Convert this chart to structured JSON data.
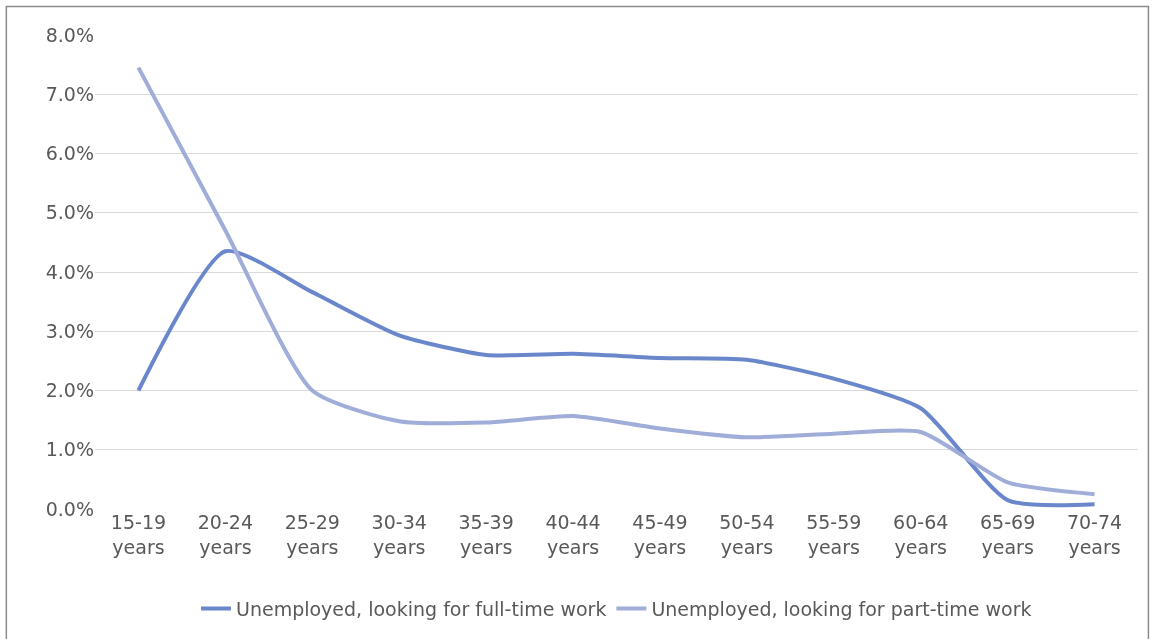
{
  "chart_data": {
    "type": "line",
    "categories": [
      "15-19 years",
      "20-24 years",
      "25-29 years",
      "30-34 years",
      "35-39 years",
      "40-44 years",
      "45-49 years",
      "50-54 years",
      "55-59 years",
      "60-64 years",
      "65-69 years",
      "70-74 years"
    ],
    "series": [
      {
        "name": "Unemployed, looking for full-time work",
        "color": "#6b87cb",
        "values": [
          2.0,
          4.35,
          3.66,
          2.93,
          2.6,
          2.62,
          2.55,
          2.52,
          2.2,
          1.7,
          0.15,
          0.08
        ]
      },
      {
        "name": "Unemployed, looking for part-time work",
        "color": "#9fadd8",
        "values": [
          7.45,
          4.7,
          2.0,
          1.48,
          1.46,
          1.57,
          1.36,
          1.21,
          1.27,
          1.3,
          0.45,
          0.25
        ]
      }
    ],
    "ylim": [
      0,
      8.0
    ],
    "yticks": [
      {
        "value": 0,
        "label": "0.0%"
      },
      {
        "value": 1,
        "label": "1.0%"
      },
      {
        "value": 2,
        "label": "2.0%"
      },
      {
        "value": 3,
        "label": "3.0%"
      },
      {
        "value": 4,
        "label": "4.0%"
      },
      {
        "value": 5,
        "label": "5.0%"
      },
      {
        "value": 6,
        "label": "6.0%"
      },
      {
        "value": 7,
        "label": "7.0%"
      },
      {
        "value": 8,
        "label": "8.0%"
      }
    ],
    "grid": "y",
    "legend": "bottom",
    "marker": "none",
    "line_style": "solid"
  }
}
